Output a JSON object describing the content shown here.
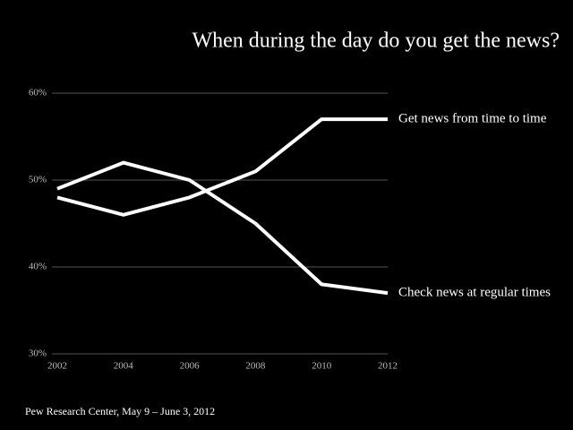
{
  "chart_data": {
    "type": "line",
    "title": "When during the day do you get the news?",
    "source": "Pew Research Center, May 9 – June 3, 2012",
    "x": [
      2002,
      2004,
      2006,
      2008,
      2010,
      2012
    ],
    "xlim": [
      2002,
      2012
    ],
    "xticks": [
      2002,
      2004,
      2006,
      2008,
      2010,
      2012
    ],
    "ylim": [
      30,
      60
    ],
    "yticks": [
      {
        "value": 30,
        "label": "30%"
      },
      {
        "value": 40,
        "label": "40%"
      },
      {
        "value": 50,
        "label": "50%"
      },
      {
        "value": 60,
        "label": "60%"
      }
    ],
    "grid": true,
    "series": [
      {
        "name": "Get news from time to time",
        "color": "#ffffff",
        "values": [
          48,
          46,
          48,
          51,
          57,
          57
        ]
      },
      {
        "name": "Check news at regular times",
        "color": "#ffffff",
        "values": [
          49,
          52,
          50,
          45,
          38,
          37
        ]
      }
    ]
  }
}
